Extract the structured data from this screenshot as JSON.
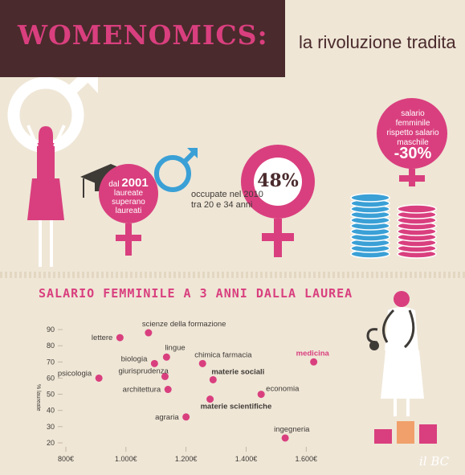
{
  "header": {
    "logo": "WOMENOMICS:",
    "subtitle": "la rivoluzione tradita"
  },
  "stats": {
    "graduates_line1": "dal",
    "graduates_year": "2001",
    "graduates_rest": "laureate superano laureati",
    "employed_percent": "48%",
    "employed_text": "occupate nel 2010 tra 20 e 34 anni",
    "salary_text": "salario femminile rispetto salario maschile",
    "salary_gap": "-30%"
  },
  "colors": {
    "pink": "#d93f7e",
    "dark": "#4a2a2c",
    "blue": "#3aa0d6",
    "background": "#efe6d6"
  },
  "chart_data": {
    "type": "scatter",
    "title": "SALARIO FEMMINILE A 3 ANNI DALLA LAUREA",
    "xlabel": "",
    "ylabel": "% laureate",
    "x_ticks": [
      "800€",
      "1.000€",
      "1.200€",
      "1.400€",
      "1.600€"
    ],
    "y_ticks": [
      20,
      30,
      40,
      50,
      60,
      70,
      80,
      90
    ],
    "xlim": [
      800,
      1650
    ],
    "ylim": [
      20,
      92
    ],
    "points": [
      {
        "label": "lettere",
        "x": 980,
        "y": 85,
        "bold": false,
        "highlight": false
      },
      {
        "label": "scienze della formazione",
        "x": 1075,
        "y": 88,
        "bold": false,
        "highlight": false
      },
      {
        "label": "lingue",
        "x": 1135,
        "y": 73,
        "bold": false,
        "highlight": false
      },
      {
        "label": "biologia",
        "x": 1095,
        "y": 69,
        "bold": false,
        "highlight": false
      },
      {
        "label": "chimica farmacia",
        "x": 1255,
        "y": 69,
        "bold": false,
        "highlight": false
      },
      {
        "label": "medicina",
        "x": 1625,
        "y": 70,
        "bold": true,
        "highlight": true
      },
      {
        "label": "psicologia",
        "x": 910,
        "y": 60,
        "bold": false,
        "highlight": false
      },
      {
        "label": "giurisprudenza",
        "x": 1130,
        "y": 61,
        "bold": false,
        "highlight": false
      },
      {
        "label": "materie sociali",
        "x": 1290,
        "y": 59,
        "bold": true,
        "highlight": false
      },
      {
        "label": "architettura",
        "x": 1140,
        "y": 53,
        "bold": false,
        "highlight": false
      },
      {
        "label": "economia",
        "x": 1450,
        "y": 50,
        "bold": false,
        "highlight": false
      },
      {
        "label": "materie scientifiche",
        "x": 1280,
        "y": 47,
        "bold": true,
        "highlight": false
      },
      {
        "label": "agraria",
        "x": 1200,
        "y": 36,
        "bold": false,
        "highlight": false
      },
      {
        "label": "ingegneria",
        "x": 1530,
        "y": 23,
        "bold": false,
        "highlight": false
      }
    ]
  },
  "signature": "il BC"
}
